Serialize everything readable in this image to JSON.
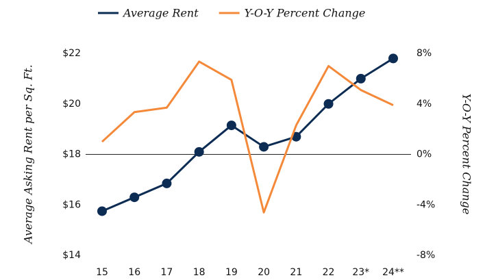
{
  "chart_data": {
    "type": "line",
    "categories": [
      "15",
      "16",
      "17",
      "18",
      "19",
      "20",
      "21",
      "22",
      "23*",
      "24**"
    ],
    "series": [
      {
        "name": "Average Rent",
        "color": "#0d2c54",
        "values": [
          15.75,
          16.3,
          16.85,
          18.1,
          19.15,
          18.3,
          18.7,
          20.0,
          21.0,
          21.8
        ]
      },
      {
        "name": "Y-O-Y Percent Change",
        "color": "#f5893a",
        "axis": "y2",
        "values": [
          1.0,
          3.35,
          3.7,
          7.35,
          5.9,
          -4.6,
          2.3,
          7.0,
          5.1,
          3.9
        ]
      }
    ],
    "y_label": "Average Asking Rent per Sq. Ft.",
    "y2_label": "Y-O-Y Percent Change",
    "ylim": [
      14,
      22
    ],
    "yticks": [
      {
        "value": 14,
        "label": "$14"
      },
      {
        "value": 16,
        "label": "$16"
      },
      {
        "value": 18,
        "label": "$18"
      },
      {
        "value": 20,
        "label": "$20"
      },
      {
        "value": 22,
        "label": "$22"
      }
    ],
    "y2lim": [
      -8,
      8
    ],
    "y2ticks": [
      {
        "value": -8,
        "label": "-8%"
      },
      {
        "value": -4,
        "label": "-4%"
      },
      {
        "value": 0,
        "label": "0%"
      },
      {
        "value": 4,
        "label": "4%"
      },
      {
        "value": 8,
        "label": "8%"
      }
    ],
    "legend": "top"
  }
}
